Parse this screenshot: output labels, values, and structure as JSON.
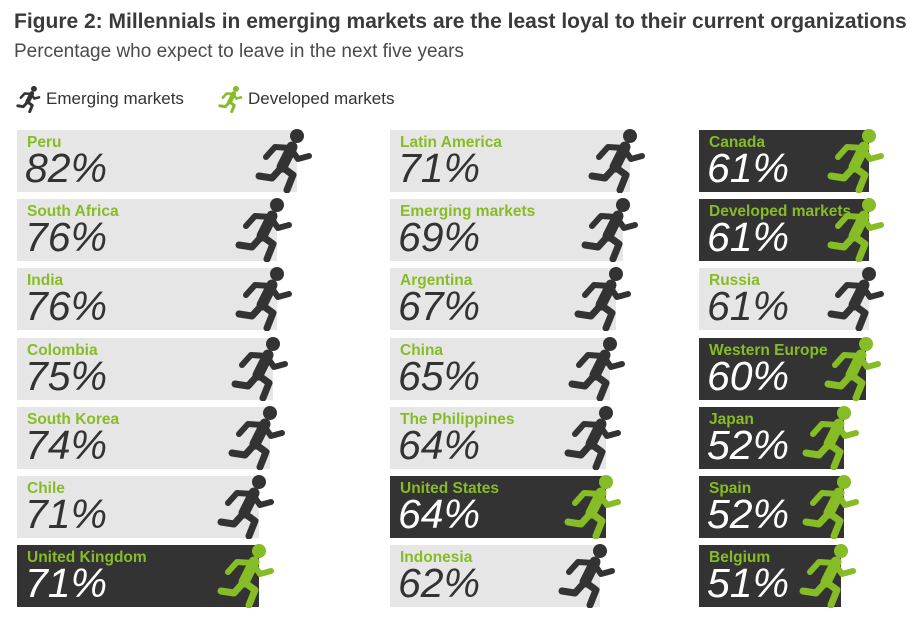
{
  "title": "Figure 2: Millennials in emerging markets are the least loyal to their current organizations",
  "subtitle": "Percentage who expect to leave in the next five years",
  "colors": {
    "emerging": "#333333",
    "developed": "#86bc25",
    "tile_light": "#e6e6e6",
    "tile_dark": "#333333"
  },
  "legend": [
    {
      "label": "Emerging markets",
      "group": "emerging",
      "icon": "running-person-icon"
    },
    {
      "label": "Developed markets",
      "group": "developed",
      "icon": "running-person-icon"
    }
  ],
  "chart_data": {
    "type": "bar",
    "title": "Figure 2: Millennials in emerging markets are the least loyal to their current organizations",
    "subtitle": "Percentage who expect to leave in the next five years",
    "unit": "%",
    "series": [
      {
        "name": "Emerging markets",
        "group": "emerging"
      },
      {
        "name": "Developed markets",
        "group": "developed"
      }
    ],
    "items": [
      {
        "label": "Peru",
        "value": 82,
        "group": "emerging"
      },
      {
        "label": "South Africa",
        "value": 76,
        "group": "emerging"
      },
      {
        "label": "India",
        "value": 76,
        "group": "emerging"
      },
      {
        "label": "Colombia",
        "value": 75,
        "group": "emerging"
      },
      {
        "label": "South Korea",
        "value": 74,
        "group": "emerging"
      },
      {
        "label": "Chile",
        "value": 71,
        "group": "emerging"
      },
      {
        "label": "United Kingdom",
        "value": 71,
        "group": "developed"
      },
      {
        "label": "Latin America",
        "value": 71,
        "group": "emerging"
      },
      {
        "label": "Emerging markets",
        "value": 69,
        "group": "emerging"
      },
      {
        "label": "Argentina",
        "value": 67,
        "group": "emerging"
      },
      {
        "label": "China",
        "value": 65,
        "group": "emerging"
      },
      {
        "label": "The Philippines",
        "value": 64,
        "group": "emerging"
      },
      {
        "label": "United States",
        "value": 64,
        "group": "developed"
      },
      {
        "label": "Indonesia",
        "value": 62,
        "group": "emerging"
      },
      {
        "label": "Canada",
        "value": 61,
        "group": "developed"
      },
      {
        "label": "Developed markets",
        "value": 61,
        "group": "developed"
      },
      {
        "label": "Russia",
        "value": 61,
        "group": "emerging"
      },
      {
        "label": "Western Europe",
        "value": 60,
        "group": "developed"
      },
      {
        "label": "Japan",
        "value": 52,
        "group": "developed"
      },
      {
        "label": "Spain",
        "value": 52,
        "group": "developed"
      },
      {
        "label": "Belgium",
        "value": 51,
        "group": "developed"
      }
    ]
  }
}
